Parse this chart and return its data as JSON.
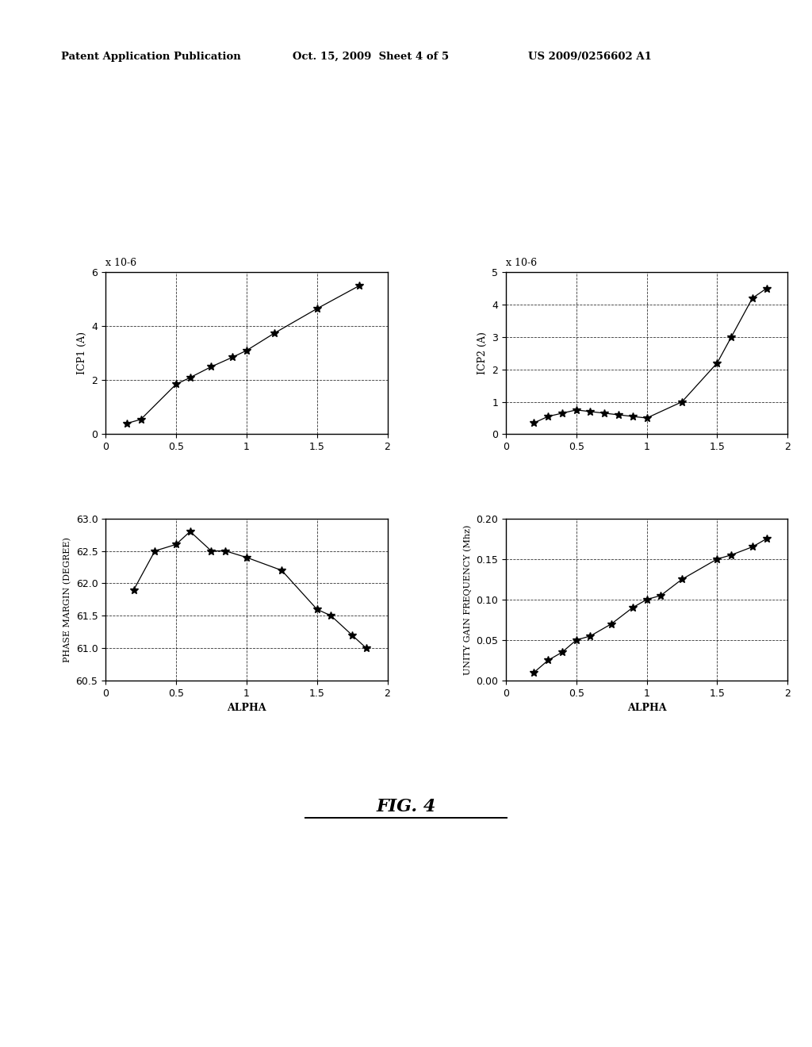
{
  "icp1_x": [
    0.15,
    0.25,
    0.5,
    0.6,
    0.75,
    0.9,
    1.0,
    1.2,
    1.5,
    1.8
  ],
  "icp1_y": [
    0.4,
    0.55,
    1.85,
    2.1,
    2.5,
    2.85,
    3.1,
    3.75,
    4.65,
    5.5
  ],
  "icp2_x": [
    0.2,
    0.3,
    0.4,
    0.5,
    0.6,
    0.7,
    0.8,
    0.9,
    1.0,
    1.25,
    1.5,
    1.6,
    1.75,
    1.85
  ],
  "icp2_y": [
    0.35,
    0.55,
    0.65,
    0.75,
    0.7,
    0.65,
    0.6,
    0.55,
    0.5,
    1.0,
    2.2,
    3.0,
    4.2,
    4.5
  ],
  "pm_x": [
    0.2,
    0.35,
    0.5,
    0.6,
    0.75,
    0.85,
    1.0,
    1.25,
    1.5,
    1.6,
    1.75,
    1.85
  ],
  "pm_y": [
    61.9,
    62.5,
    62.6,
    62.8,
    62.5,
    62.5,
    62.4,
    62.2,
    61.6,
    61.5,
    61.2,
    61.0
  ],
  "ugf_x": [
    0.2,
    0.3,
    0.4,
    0.5,
    0.6,
    0.75,
    0.9,
    1.0,
    1.1,
    1.25,
    1.5,
    1.6,
    1.75,
    1.85
  ],
  "ugf_y": [
    0.01,
    0.025,
    0.035,
    0.05,
    0.055,
    0.07,
    0.09,
    0.1,
    0.105,
    0.125,
    0.15,
    0.155,
    0.165,
    0.175
  ],
  "icp1_ylabel": "ICP1 (A)",
  "icp2_ylabel": "ICP2 (A)",
  "pm_ylabel": "PHASE MARGIN (DEGREE)",
  "ugf_ylabel": "UNITY GAIN FREQUENCY (Mhz)",
  "pm_xlabel": "ALPHA",
  "ugf_xlabel": "ALPHA",
  "icp1_xlim": [
    0,
    2
  ],
  "icp1_ylim": [
    0,
    6
  ],
  "icp2_xlim": [
    0,
    2
  ],
  "icp2_ylim": [
    0,
    5
  ],
  "pm_xlim": [
    0,
    2
  ],
  "pm_ylim": [
    60.5,
    63
  ],
  "ugf_xlim": [
    0,
    2
  ],
  "ugf_ylim": [
    0,
    0.2
  ],
  "icp1_yticks": [
    0,
    2,
    4,
    6
  ],
  "icp2_yticks": [
    0,
    1,
    2,
    3,
    4,
    5
  ],
  "pm_yticks": [
    60.5,
    61,
    61.5,
    62,
    62.5,
    63
  ],
  "ugf_yticks": [
    0,
    0.05,
    0.1,
    0.15,
    0.2
  ],
  "xticks": [
    0,
    0.5,
    1,
    1.5,
    2
  ],
  "xtick_labels": [
    "0",
    "0.5",
    "1",
    "1.5",
    "2"
  ],
  "icp1_scale_text": "x 10-6",
  "icp2_scale_text": "x 10-6",
  "fig_label": "FIG. 4",
  "header_left": "Patent Application Publication",
  "header_center": "Oct. 15, 2009  Sheet 4 of 5",
  "header_right": "US 2009/0256602 A1",
  "bg_color": "#ffffff",
  "line_color": "#000000",
  "grid_color": "#000000",
  "marker": "*",
  "markersize": 7,
  "linewidth": 0.9
}
